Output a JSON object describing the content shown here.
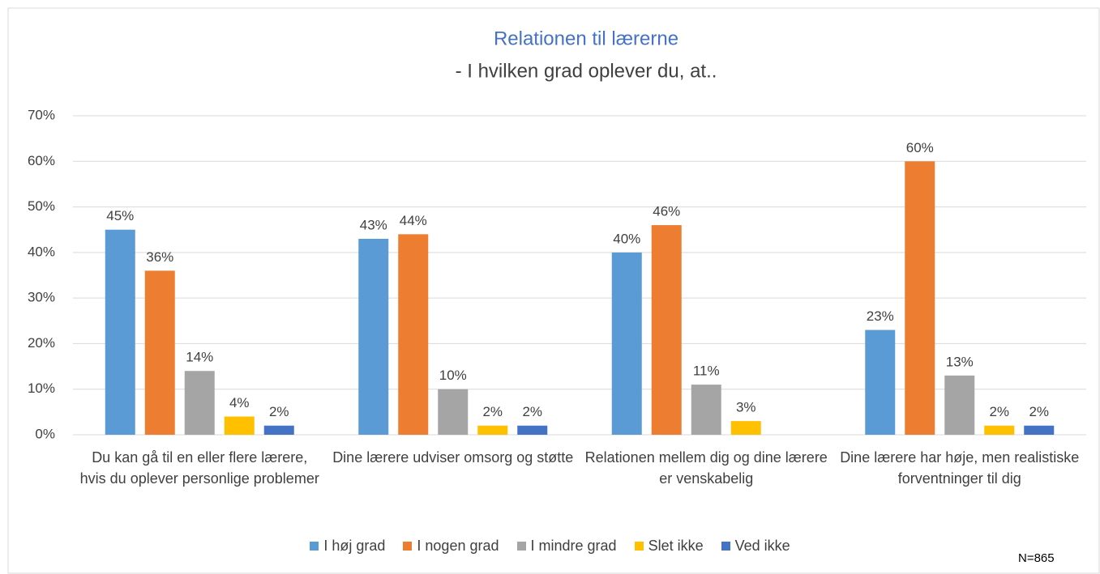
{
  "chart_data": {
    "type": "bar",
    "title": "Relationen til lærerne",
    "subtitle": "- I hvilken grad oplever du, at..",
    "categories": [
      "Du kan gå til en eller flere lærere, hvis du oplever personlige problemer",
      "Dine lærere udviser omsorg og støtte",
      "Relationen mellem dig og dine lærere er venskabelig",
      "Dine lærere har høje, men realistiske forventninger til dig"
    ],
    "series": [
      {
        "name": "I høj grad",
        "color": "#5b9bd5",
        "values": [
          45,
          43,
          40,
          23
        ],
        "value_labels": [
          "45%",
          "43%",
          "40%",
          "23%"
        ]
      },
      {
        "name": "I nogen grad",
        "color": "#ed7d31",
        "values": [
          36,
          44,
          46,
          60
        ],
        "value_labels": [
          "36%",
          "44%",
          "46%",
          "60%"
        ]
      },
      {
        "name": "I mindre grad",
        "color": "#a5a5a5",
        "values": [
          14,
          10,
          11,
          13
        ],
        "value_labels": [
          "14%",
          "10%",
          "11%",
          "13%"
        ]
      },
      {
        "name": "Slet ikke",
        "color": "#ffc000",
        "values": [
          4,
          2,
          3,
          2
        ],
        "value_labels": [
          "4%",
          "2%",
          "3%",
          "2%"
        ]
      },
      {
        "name": "Ved ikke",
        "color": "#4472c4",
        "values": [
          2,
          2,
          null,
          2
        ],
        "value_labels": [
          "2%",
          "2%",
          null,
          "2%"
        ]
      }
    ],
    "ylim": [
      0,
      70
    ],
    "yticks": [
      {
        "value": 0,
        "label": "0%"
      },
      {
        "value": 10,
        "label": "10%"
      },
      {
        "value": 20,
        "label": "20%"
      },
      {
        "value": 30,
        "label": "30%"
      },
      {
        "value": 40,
        "label": "40%"
      },
      {
        "value": 50,
        "label": "50%"
      },
      {
        "value": 60,
        "label": "60%"
      },
      {
        "value": 70,
        "label": "70%"
      }
    ],
    "grid": true,
    "legend": "bottom",
    "annotation": "N=865"
  }
}
